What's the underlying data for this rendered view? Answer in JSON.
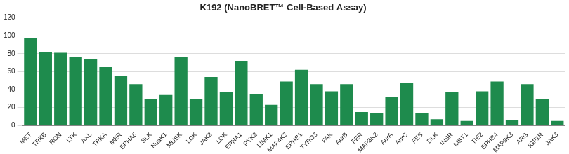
{
  "chart_data": {
    "type": "bar",
    "title": "K192 (NanoBRET™ Cell-Based Assay)",
    "categories": [
      "MET",
      "TRKB",
      "RON",
      "LTK",
      "AXL",
      "TRKA",
      "MER",
      "EPHA6",
      "SLK",
      "NuaK1",
      "MUSK",
      "LCK",
      "JAK2",
      "LOK",
      "EPHA1",
      "PYK2",
      "LIMK1",
      "MAP4K2",
      "EPHB1",
      "TYRO3",
      "FAK",
      "AurB",
      "FER",
      "MAP3K2",
      "AurA",
      "AurC",
      "FES",
      "DLK",
      "INSR",
      "MST1",
      "TIE2",
      "EPHB4",
      "MAP3K3",
      "ARG",
      "IGF1R",
      "JAK3"
    ],
    "values": [
      97,
      82,
      81,
      76,
      74,
      65,
      55,
      46,
      29,
      34,
      76,
      29,
      54,
      37,
      72,
      35,
      23,
      49,
      62,
      46,
      38,
      46,
      15,
      14,
      32,
      47,
      14,
      7,
      37,
      5,
      38,
      49,
      6,
      46,
      29,
      5
    ],
    "color": "#1e8b4d",
    "ylim": [
      0,
      120
    ],
    "yticks": [
      0,
      20,
      40,
      60,
      80,
      100,
      120
    ],
    "grid": true
  }
}
